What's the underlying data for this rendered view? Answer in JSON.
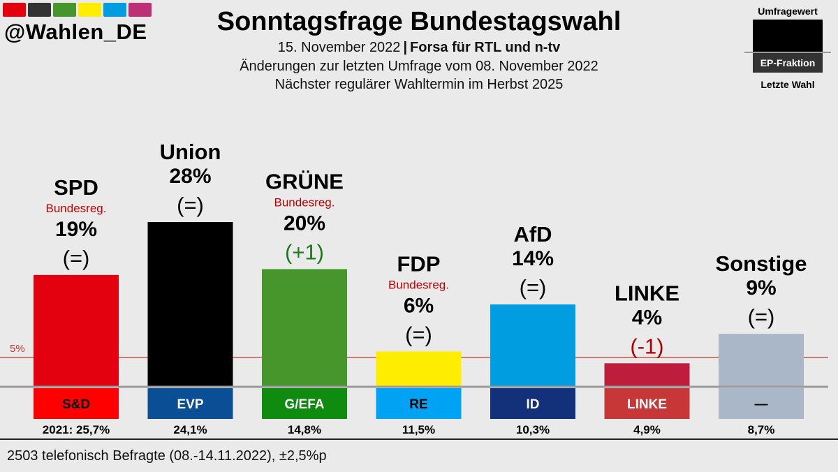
{
  "header": {
    "handle": "@Wahlen_DE",
    "title": "Sonntagsfrage Bundestagswahl",
    "date": "15. November 2022",
    "separator": "|",
    "institute": "Forsa für RTL und n-tv",
    "subtitle2": "Änderungen zur letzten Umfrage vom 08. November 2022",
    "subtitle3": "Nächster regulärer Wahltermin im Herbst 2025",
    "swatch_colors": [
      "#e3000f",
      "#333333",
      "#46962b",
      "#ffed00",
      "#009ee0",
      "#be3075"
    ]
  },
  "legend": {
    "top": "Umfragewert",
    "middle": "EP-Fraktion",
    "bottom": "Letzte Wahl"
  },
  "chart_data": {
    "type": "bar",
    "title": "Sonntagsfrage Bundestagswahl",
    "ylim": [
      0,
      28
    ],
    "threshold": {
      "value": 5,
      "label": "5%"
    },
    "categories": [
      "SPD",
      "Union",
      "GRÜNE",
      "FDP",
      "AfD",
      "LINKE",
      "Sonstige"
    ],
    "values": [
      19,
      28,
      20,
      6,
      14,
      4,
      9
    ],
    "value_labels": [
      "19%",
      "28%",
      "20%",
      "6%",
      "14%",
      "4%",
      "9%"
    ],
    "changes": [
      "(=)",
      "(=)",
      "(+1)",
      "(=)",
      "(=)",
      "(-1)",
      "(=)"
    ],
    "change_colors": [
      "#000000",
      "#000000",
      "#1a7a1a",
      "#000000",
      "#000000",
      "#b00000",
      "#000000"
    ],
    "gov_labels": [
      "Bundesreg.",
      "",
      "Bundesreg.",
      "Bundesreg.",
      "",
      "",
      ""
    ],
    "bar_colors": [
      "#e3000f",
      "#000000",
      "#46962b",
      "#ffed00",
      "#009ee0",
      "#be1e3c",
      "#aab7c9"
    ],
    "ep_groups": [
      "S&D",
      "EVP",
      "G/EFA",
      "RE",
      "ID",
      "LINKE",
      "—"
    ],
    "ep_colors": [
      "#ff0000",
      "#0a4f96",
      "#0f8b0f",
      "#00a2f3",
      "#13317a",
      "#c83737",
      "#aab7c9"
    ],
    "ep_text_colors": [
      "#000000",
      "#ffffff",
      "#ffffff",
      "#000000",
      "#ffffff",
      "#ffffff",
      "#000000"
    ],
    "last_election": [
      "2021: 25,7%",
      "24,1%",
      "14,8%",
      "11,5%",
      "10,3%",
      "4,9%",
      "8,7%"
    ]
  },
  "footer": {
    "note": "2503 telefonisch Befragte (08.-14.11.2022), ±2,5%p"
  }
}
